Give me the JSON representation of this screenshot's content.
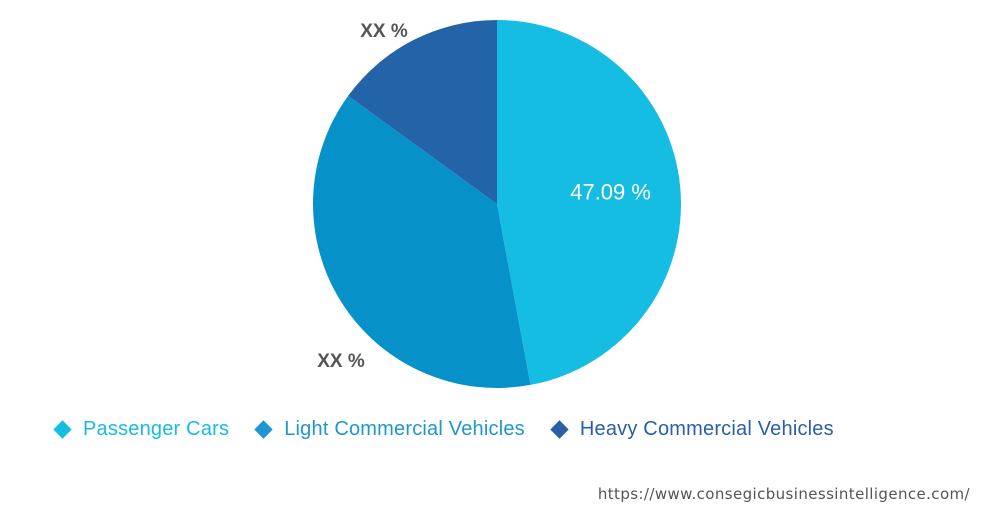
{
  "chart_data": {
    "type": "pie",
    "title": "",
    "slices": [
      {
        "name": "Passenger Cars",
        "value": 47.09,
        "label": "47.09 %",
        "color": "#15bde3",
        "label_color": "#ffffff"
      },
      {
        "name": "Light Commercial Vehicles",
        "value": 37.91,
        "label": "XX %",
        "color": "#0691c8",
        "label_color": "#555555"
      },
      {
        "name": "Heavy Commercial Vehicles",
        "value": 15.0,
        "label": "XX %",
        "color": "#2364a8",
        "label_color": "#555555"
      }
    ],
    "start_angle_deg": 0,
    "direction": "clockwise",
    "legend_position": "bottom"
  },
  "legend": {
    "items": [
      {
        "label": "Passenger Cars",
        "color": "#15bde3"
      },
      {
        "label": "Light Commercial Vehicles",
        "color": "#1e96d1"
      },
      {
        "label": "Heavy Commercial Vehicles",
        "color": "#2a5ea8"
      }
    ]
  },
  "footer": {
    "url": "https://www.consegicbusinessintelligence.com/"
  }
}
